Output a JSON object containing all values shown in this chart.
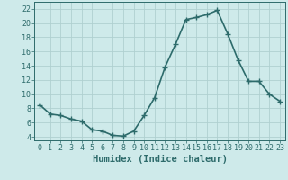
{
  "x": [
    0,
    1,
    2,
    3,
    4,
    5,
    6,
    7,
    8,
    9,
    10,
    11,
    12,
    13,
    14,
    15,
    16,
    17,
    18,
    19,
    20,
    21,
    22,
    23
  ],
  "y": [
    8.5,
    7.2,
    7.0,
    6.5,
    6.2,
    5.0,
    4.8,
    4.2,
    4.1,
    4.8,
    7.0,
    9.5,
    13.8,
    17.0,
    20.5,
    20.8,
    21.2,
    21.8,
    18.5,
    14.8,
    11.8,
    11.8,
    10.0,
    9.0
  ],
  "line_color": "#2d6b6b",
  "marker": "D",
  "marker_size": 2.5,
  "linewidth": 1.2,
  "bg_color": "#ceeaea",
  "grid_color": "#b0d0d0",
  "xlabel": "Humidex (Indice chaleur)",
  "xlabel_fontsize": 7.5,
  "tick_fontsize": 6,
  "xlim": [
    -0.5,
    23.5
  ],
  "ylim": [
    3.5,
    23
  ],
  "yticks": [
    4,
    6,
    8,
    10,
    12,
    14,
    16,
    18,
    20,
    22
  ],
  "xticks": [
    0,
    1,
    2,
    3,
    4,
    5,
    6,
    7,
    8,
    9,
    10,
    11,
    12,
    13,
    14,
    15,
    16,
    17,
    18,
    19,
    20,
    21,
    22,
    23
  ]
}
